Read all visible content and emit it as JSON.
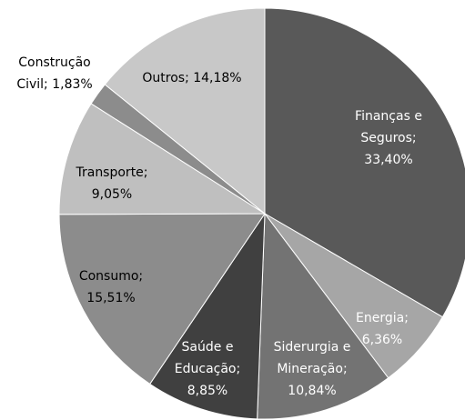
{
  "chart_data": {
    "type": "pie",
    "values": [
      33.4,
      6.36,
      10.84,
      8.85,
      15.51,
      9.05,
      1.83,
      14.18
    ],
    "value_labels": [
      "Finanças e Seguros; 33,40%",
      "Energia; 6,36%",
      "Siderurgia e Mineração; 10,84%",
      "Saúde e Educação; 8,85%",
      "Consumo; 15,51%",
      "Transporte; 9,05%",
      "Construção Civil; 1,83%",
      "Outros; 14,18%"
    ],
    "colors": [
      "#595959",
      "#a6a6a6",
      "#737373",
      "#404040",
      "#8c8c8c",
      "#bfbfbf",
      "#8c8c8c",
      "#c8c8c8"
    ]
  }
}
